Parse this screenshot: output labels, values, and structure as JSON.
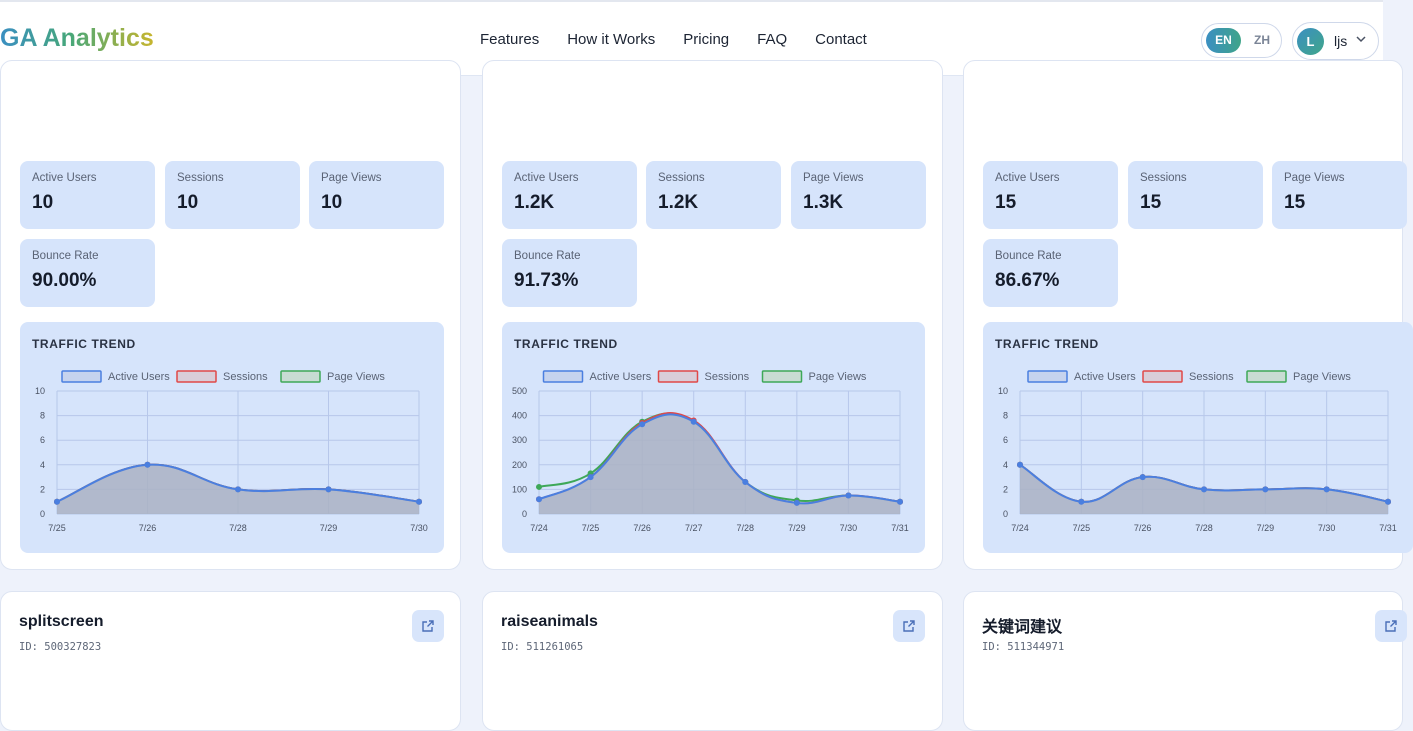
{
  "header": {
    "logo": "GA Analytics",
    "nav": [
      "Features",
      "How it Works",
      "Pricing",
      "FAQ",
      "Contact"
    ],
    "lang": {
      "en": "EN",
      "zh": "ZH",
      "active": "EN"
    },
    "user": {
      "initial": "L",
      "name": "ljs"
    }
  },
  "labels": {
    "active_users": "Active Users",
    "sessions": "Sessions",
    "page_views": "Page Views",
    "bounce_rate": "Bounce Rate",
    "traffic_trend": "TRAFFIC TREND"
  },
  "sites": [
    {
      "name": "splitscreen",
      "id": "ID: 500327823",
      "stats": {
        "active_users": "10",
        "sessions": "10",
        "page_views": "10",
        "bounce_rate": "90.00%"
      }
    },
    {
      "name": "raiseanimals",
      "id": "ID: 511261065",
      "stats": {
        "active_users": "1.2K",
        "sessions": "1.2K",
        "page_views": "1.3K",
        "bounce_rate": "91.73%"
      }
    },
    {
      "name": "关键词建议",
      "id": "ID: 511344971",
      "stats": {
        "active_users": "15",
        "sessions": "15",
        "page_views": "15",
        "bounce_rate": "86.67%"
      }
    }
  ],
  "colors": {
    "active_users": "#4a7fe0",
    "sessions": "#e04848",
    "page_views": "#3ea858",
    "area_fill": "#aab2c3"
  },
  "chart_data": [
    {
      "type": "area",
      "title": "TRAFFIC TREND",
      "x": [
        "7/25",
        "7/26",
        "7/28",
        "7/29",
        "7/30"
      ],
      "ylim": [
        0,
        10
      ],
      "yticks": [
        0,
        2,
        4,
        6,
        8,
        10
      ],
      "series": [
        {
          "name": "Active Users",
          "values": [
            1,
            4,
            2,
            2,
            1
          ]
        },
        {
          "name": "Sessions",
          "values": [
            1,
            4,
            2,
            2,
            1
          ]
        },
        {
          "name": "Page Views",
          "values": [
            1,
            4,
            2,
            2,
            1
          ]
        }
      ],
      "grid": true,
      "legend": "top"
    },
    {
      "type": "area",
      "title": "TRAFFIC TREND",
      "x": [
        "7/24",
        "7/25",
        "7/26",
        "7/27",
        "7/28",
        "7/29",
        "7/30",
        "7/31"
      ],
      "ylim": [
        0,
        500
      ],
      "yticks": [
        0,
        100,
        200,
        300,
        400,
        500
      ],
      "series": [
        {
          "name": "Active Users",
          "values": [
            60,
            150,
            365,
            375,
            130,
            45,
            75,
            50
          ]
        },
        {
          "name": "Sessions",
          "values": [
            60,
            150,
            370,
            380,
            130,
            45,
            75,
            50
          ]
        },
        {
          "name": "Page Views",
          "values": [
            110,
            165,
            375,
            375,
            130,
            55,
            75,
            50
          ]
        }
      ],
      "grid": true,
      "legend": "top"
    },
    {
      "type": "area",
      "title": "TRAFFIC TREND",
      "x": [
        "7/24",
        "7/25",
        "7/26",
        "7/28",
        "7/29",
        "7/30",
        "7/31"
      ],
      "ylim": [
        0,
        10
      ],
      "yticks": [
        0,
        2,
        4,
        6,
        8,
        10
      ],
      "series": [
        {
          "name": "Active Users",
          "values": [
            4,
            1,
            3,
            2,
            2,
            2,
            1
          ]
        },
        {
          "name": "Sessions",
          "values": [
            4,
            1,
            3,
            2,
            2,
            2,
            1
          ]
        },
        {
          "name": "Page Views",
          "values": [
            4,
            1,
            3,
            2,
            2,
            2,
            1
          ]
        }
      ],
      "grid": true,
      "legend": "top"
    }
  ]
}
